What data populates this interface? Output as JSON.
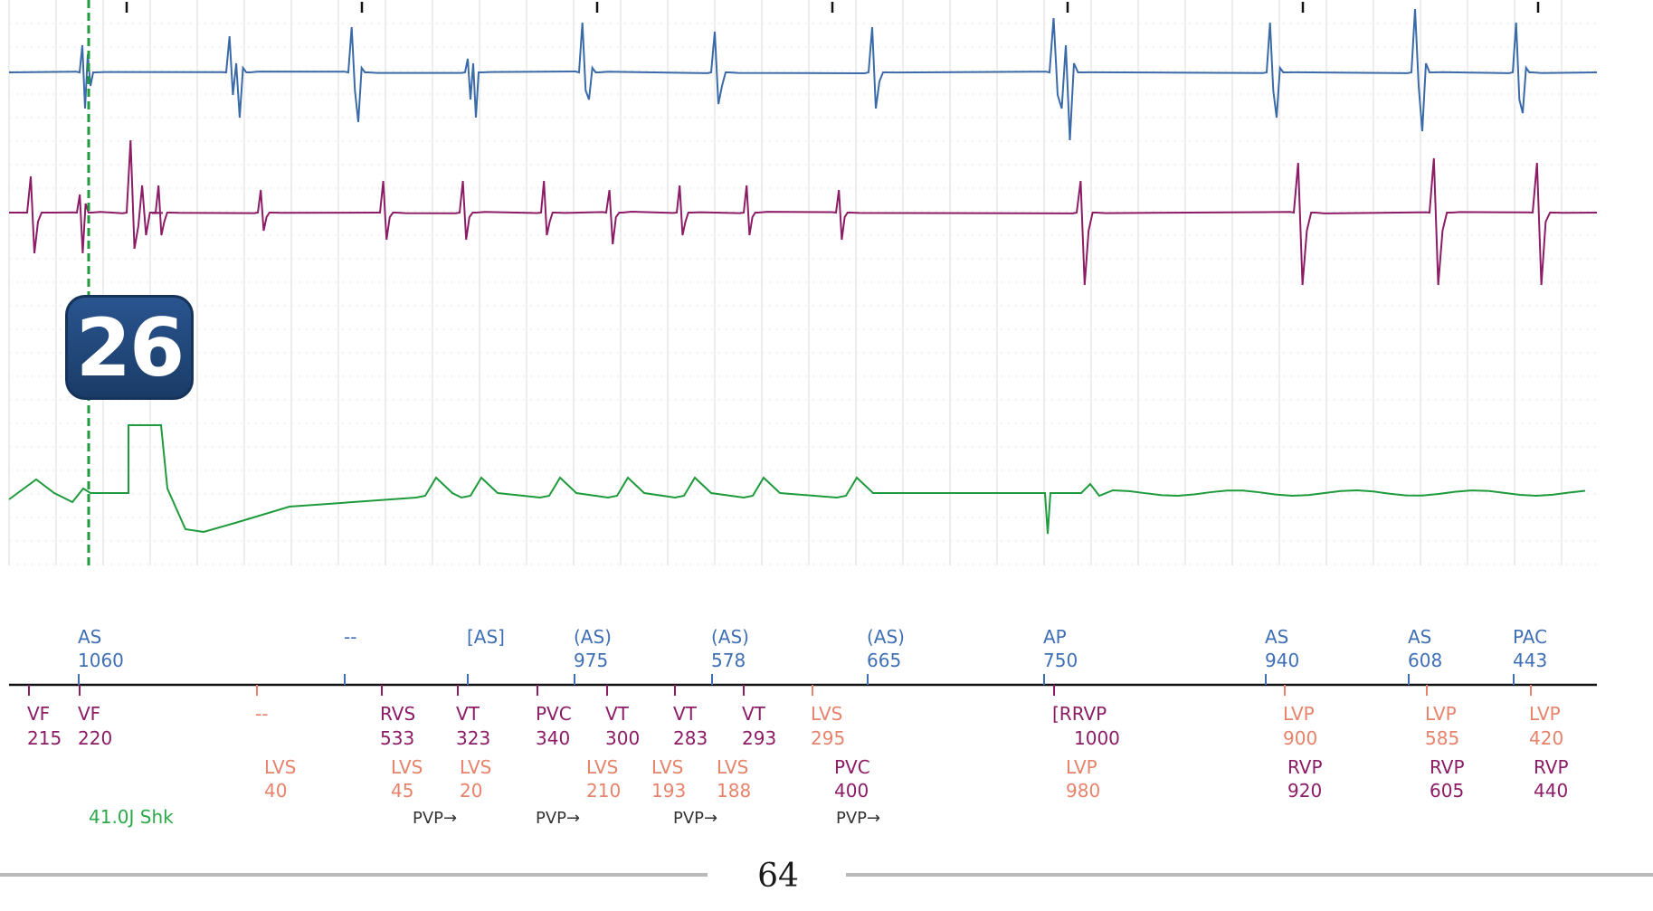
{
  "badge": {
    "number": "26"
  },
  "page_number": "64",
  "colors": {
    "channel_1": "#3a6aa8",
    "channel_2": "#8c1c66",
    "channel_3": "#1f9a3c",
    "atrial_markers": "#3f6fb5",
    "ventricular_markers": "#8c1c66",
    "lvs_markers": "#e7826b",
    "shock": "#2aa84a",
    "pvp": "#333333",
    "grid": "#dcdcdc"
  },
  "chart_data": {
    "type": "line",
    "description_free": true,
    "series": [
      {
        "channel": 1,
        "style": "ecg"
      },
      {
        "channel": 2,
        "style": "ecg"
      },
      {
        "channel": 3,
        "style": "ecg"
      }
    ],
    "top_markers": [
      {
        "label": "AS",
        "value": "1060"
      },
      {
        "label": "--",
        "value": ""
      },
      {
        "label": "[AS]",
        "value": ""
      },
      {
        "label": "(AS)",
        "value": "975"
      },
      {
        "label": "(AS)",
        "value": "578"
      },
      {
        "label": "(AS)",
        "value": "665"
      },
      {
        "label": "AP",
        "value": "750"
      },
      {
        "label": "AS",
        "value": "940"
      },
      {
        "label": "AS",
        "value": "608"
      },
      {
        "label": "PAC",
        "value": "443"
      }
    ],
    "ventricular_markers": [
      {
        "label": "VF",
        "value": "215"
      },
      {
        "label": "VF",
        "value": "220"
      },
      {
        "label": "--",
        "value": ""
      },
      {
        "label": "RVS",
        "value": "533"
      },
      {
        "label": "VT",
        "value": "323"
      },
      {
        "label": "PVC",
        "value": "340"
      },
      {
        "label": "VT",
        "value": "300"
      },
      {
        "label": "VT",
        "value": "283"
      },
      {
        "label": "VT",
        "value": "293"
      },
      {
        "label": "LVS",
        "value": "295"
      },
      {
        "label": "[RRVP",
        "value": "1000"
      },
      {
        "label": "LVP",
        "value": "900"
      },
      {
        "label": "LVP",
        "value": "585"
      },
      {
        "label": "LVP",
        "value": "420"
      }
    ],
    "second_row_markers": [
      {
        "label": "LVS",
        "value": "40"
      },
      {
        "label": "LVS",
        "value": "45"
      },
      {
        "label": "LVS",
        "value": "20"
      },
      {
        "label": "LVS",
        "value": "210"
      },
      {
        "label": "LVS",
        "value": "193"
      },
      {
        "label": "LVS",
        "value": "188"
      },
      {
        "label": "PVC",
        "value": "400"
      },
      {
        "label": "LVP",
        "value": "980"
      },
      {
        "label": "RVP",
        "value": "920"
      },
      {
        "label": "RVP",
        "value": "605"
      },
      {
        "label": "RVP",
        "value": "440"
      }
    ],
    "shock_label": "41.0J Shk",
    "pvp_labels": [
      "PVP→",
      "PVP→",
      "PVP→",
      "PVP→"
    ]
  }
}
